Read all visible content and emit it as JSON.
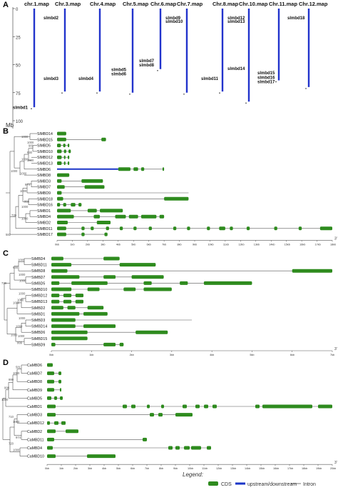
{
  "panel_labels": [
    "A",
    "B",
    "C",
    "D"
  ],
  "panelA": {
    "axis_ticks": [
      "0",
      "25",
      "50",
      "75",
      "100"
    ],
    "axis_unit": "Mb",
    "chromosomes": [
      {
        "name": "chr.1.map",
        "length": 88,
        "genes": [
          {
            "label": "slmbd1",
            "pos": 82
          }
        ]
      },
      {
        "name": "Chr.3.map",
        "length": 74,
        "genes": [
          {
            "label": "slmbd2",
            "pos": 2
          },
          {
            "label": "slmbd3",
            "pos": 56
          }
        ]
      },
      {
        "name": "Chr.4.map",
        "length": 74,
        "genes": [
          {
            "label": "slmbd4",
            "pos": 56
          }
        ]
      },
      {
        "name": "Chr.5.map",
        "length": 75,
        "genes": [
          {
            "label": "slmbd5",
            "pos": 48
          },
          {
            "label": "slmbd6",
            "pos": 52
          }
        ]
      },
      {
        "name": "Chr.6.map",
        "length": 54,
        "genes": [
          {
            "label": "slmbd7",
            "pos": 40
          },
          {
            "label": "slmbd8",
            "pos": 44
          }
        ]
      },
      {
        "name": "Chr.7.map",
        "length": 75,
        "genes": [
          {
            "label": "slmbd9",
            "pos": 2
          },
          {
            "label": "slmbd10",
            "pos": 5
          }
        ]
      },
      {
        "name": "Chr.8.map",
        "length": 74,
        "genes": [
          {
            "label": "slmbd11",
            "pos": 56
          }
        ]
      },
      {
        "name": "Chr.10.map",
        "length": 83,
        "genes": [
          {
            "label": "slmbd12",
            "pos": 2
          },
          {
            "label": "slmbd13",
            "pos": 5
          },
          {
            "label": "slmbd14",
            "pos": 47
          }
        ]
      },
      {
        "name": "Chr.11.map",
        "length": 64,
        "genes": [
          {
            "label": "slmbd15",
            "pos": 51
          },
          {
            "label": "slmbd16",
            "pos": 55
          },
          {
            "label": "slmbd17",
            "pos": 59
          }
        ]
      },
      {
        "name": "Chr.12.map",
        "length": 70,
        "genes": [
          {
            "label": "slmbd18",
            "pos": 2
          }
        ]
      }
    ]
  },
  "panelB": {
    "genes": [
      "SlMBD14",
      "SlMBD15",
      "SlMBD5",
      "SlMBD10",
      "SlMBD12",
      "SlMBD13",
      "SlMBD6",
      "SlMBD8",
      "SlMBD3",
      "SlMBD7",
      "SlMBD9",
      "SlMBD18",
      "SlMBD16",
      "SlMBD1",
      "SlMBD4",
      "SlMBD2",
      "SlMBD11",
      "SlMBD17"
    ],
    "bootstrap": [
      "1000",
      "1000",
      "981",
      "930",
      "1000",
      "1000",
      "1000",
      "1000",
      "974",
      "1000",
      "868",
      "1000",
      "739",
      "1000",
      "582"
    ],
    "scale_ticks": [
      "0kb",
      "1kb",
      "2kb",
      "3kb",
      "4kb",
      "5kb",
      "6kb",
      "7kb",
      "8kb",
      "9kb",
      "10kb",
      "11kb",
      "12kb",
      "13kb",
      "14kb",
      "15kb",
      "16kb",
      "17kb",
      "18kb"
    ],
    "scale_max": 18,
    "scale_end_label": "3'"
  },
  "panelC": {
    "genes": [
      "StMBD4",
      "StMBD11",
      "StMBD8",
      "StMBD7",
      "StMBD5",
      "StMBD10",
      "StMBD12",
      "StMBD13",
      "StMBD2",
      "StMBD1",
      "StMBD3",
      "StMBD14",
      "StMBD6",
      "StMBD15",
      "StMBD9"
    ],
    "bootstrap": [
      "1000",
      "646",
      "1000",
      "1000",
      "738",
      "1000",
      "1000",
      "1000",
      "1000",
      "1000",
      "1000",
      "1000",
      "999"
    ],
    "scale_ticks": [
      "0kb",
      "1kb",
      "2kb",
      "3kb",
      "4kb",
      "5kb",
      "6kb",
      "7kb"
    ],
    "scale_max": 7,
    "scale_end_label": "3'"
  },
  "panelD": {
    "genes": [
      "CaMBD6",
      "CaMBD7",
      "CaMBD8",
      "CaMBD9",
      "CaMBD5",
      "CaMBD1",
      "CaMBD3",
      "CaMBD12",
      "CaMBD2",
      "CaMBD11",
      "CaMBD4",
      "CaMBD10"
    ],
    "bootstrap": [
      "581",
      "1000",
      "999",
      "998",
      "1000",
      "710",
      "1000",
      "974",
      "720",
      "1000"
    ],
    "scale_ticks": [
      "0kb",
      "1kb",
      "2kb",
      "3kb",
      "4kb",
      "5kb",
      "6kb",
      "7kb",
      "8kb",
      "9kb",
      "10kb",
      "11kb",
      "12kb",
      "13kb",
      "14kb",
      "15kb",
      "16kb",
      "17kb",
      "18kb",
      "19kb",
      "20kb"
    ],
    "scale_max": 20,
    "scale_end_label": "3'"
  },
  "legend": {
    "title": "Legend:",
    "items": [
      "CDS",
      "upstream/downstream",
      "Intron"
    ]
  },
  "colors": {
    "cds": "#2e8b1e",
    "utr": "#1a35c8",
    "intron": "#555555",
    "chromosome": "#2233cc"
  }
}
